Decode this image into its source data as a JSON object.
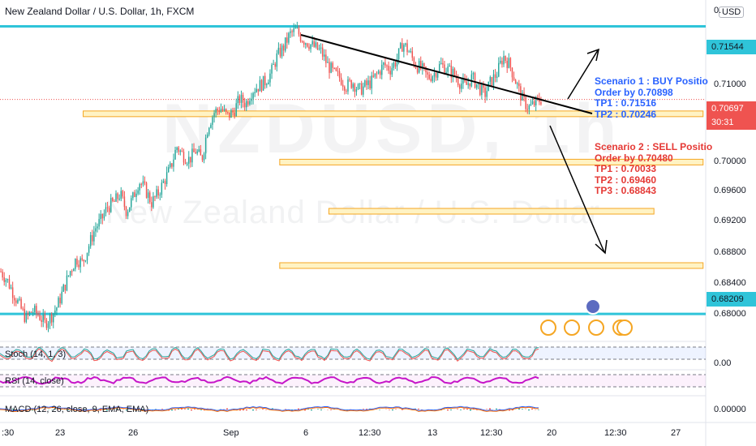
{
  "title": "New Zealand Dollar / U.S. Dollar, 1h, FXCM",
  "watermark_symbol": "NZDUSD, 1h",
  "watermark_name": "New Zealand Dollar / U.S. Dollar",
  "currency_button": "USD",
  "axis_top_partial": "0.",
  "price_levels": [
    "0.71000",
    "0.70000",
    "0.69600",
    "0.69200",
    "0.68800",
    "0.68400",
    "0.68000"
  ],
  "price_tags": {
    "resistance": "0.71544",
    "current": "0.70697",
    "countdown": "30:31",
    "support": "0.68209"
  },
  "x_labels": [
    ":30",
    "23",
    "26",
    "Sep",
    "6",
    "12:30",
    "13",
    "12:30",
    "20",
    "12:30",
    "27"
  ],
  "scenario1": {
    "title": "Scenario 1 : BUY Positio",
    "order": "Order by 0.70898",
    "tp1": "TP1 : 0.71516",
    "tp2": "TP2 : 0.70246"
  },
  "scenario2": {
    "title": "Scenario 2 : SELL Positio",
    "order": "Order by 0.70480",
    "tp1": "TP1 : 0.70033",
    "tp2": "TP2 : 0.69460",
    "tp3": "TP3 : 0.68843"
  },
  "indicators": {
    "stoch": "Stoch (14, 1, 3)",
    "stoch_value": "0.00",
    "rsi": "RSI (14, close)",
    "macd": "MACD (12, 26, close, 9, EMA, EMA)",
    "macd_value": "0.00000"
  },
  "colors": {
    "up": "#26a69a",
    "down": "#ef5350",
    "level_line": "#2fc4d9",
    "zone_fill": "#fff3c4",
    "zone_border": "#f5a623",
    "buy_text": "#2962ff",
    "sell_text": "#e53935",
    "rsi": "#c615c8"
  },
  "chart_data": {
    "type": "candlestick",
    "symbol": "NZDUSD",
    "timeframe": "1h",
    "ylim": [
      0.679,
      0.7185
    ],
    "horizontal_levels": [
      0.71544,
      0.68209
    ],
    "current_price": 0.70697,
    "zones": [
      {
        "from_x": 0.11,
        "to_x": 0.93,
        "price": 0.7053
      },
      {
        "from_x": 0.37,
        "to_x": 0.93,
        "price": 0.6997
      },
      {
        "from_x": 0.435,
        "to_x": 0.865,
        "price": 0.694
      },
      {
        "from_x": 0.37,
        "to_x": 0.93,
        "price": 0.6877
      }
    ],
    "close_path": [
      0.687,
      0.686,
      0.6845,
      0.683,
      0.6815,
      0.6825,
      0.682,
      0.681,
      0.6818,
      0.683,
      0.685,
      0.687,
      0.6885,
      0.688,
      0.69,
      0.692,
      0.693,
      0.6945,
      0.695,
      0.696,
      0.694,
      0.6955,
      0.6975,
      0.6965,
      0.695,
      0.696,
      0.6975,
      0.699,
      0.7015,
      0.7005,
      0.7,
      0.701,
      0.7,
      0.704,
      0.7055,
      0.706,
      0.705,
      0.7055,
      0.707,
      0.7065,
      0.708,
      0.7085,
      0.709,
      0.71,
      0.712,
      0.713,
      0.7145,
      0.715,
      0.714,
      0.7135,
      0.713,
      0.7125,
      0.711,
      0.71,
      0.7095,
      0.7085,
      0.709,
      0.708,
      0.7085,
      0.709,
      0.71,
      0.711,
      0.7105,
      0.7115,
      0.7135,
      0.7125,
      0.711,
      0.7105,
      0.7095,
      0.71,
      0.711,
      0.7105,
      0.71,
      0.709,
      0.7085,
      0.7095,
      0.7085,
      0.7075,
      0.709,
      0.71,
      0.712,
      0.711,
      0.709,
      0.707,
      0.706,
      0.7065,
      0.707
    ]
  }
}
